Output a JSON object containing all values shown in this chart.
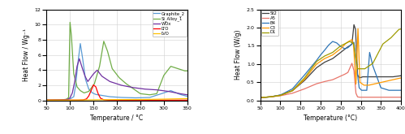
{
  "left_chart": {
    "xlabel": "Temperature / °C",
    "ylabel": "Heat Flow / Wg⁻¹",
    "xlim": [
      50,
      350
    ],
    "ylim": [
      0,
      12
    ],
    "yticks": [
      0,
      2,
      4,
      6,
      8,
      10,
      12
    ],
    "xticks": [
      50,
      100,
      150,
      200,
      250,
      300,
      350
    ],
    "series": {
      "Graphite_2": {
        "color": "#5B9BD5",
        "data_x": [
          50,
          85,
          95,
          100,
          108,
          112,
          117,
          122,
          127,
          133,
          140,
          148,
          155,
          165,
          185,
          210,
          240,
          270,
          295,
          315,
          335,
          350
        ],
        "data_y": [
          0.05,
          0.08,
          0.1,
          0.2,
          0.5,
          2.0,
          5.0,
          7.5,
          5.5,
          2.8,
          1.5,
          1.0,
          0.8,
          0.7,
          0.5,
          0.4,
          0.35,
          0.4,
          0.9,
          1.3,
          0.8,
          0.55
        ]
      },
      "Si_Alloy_1": {
        "color": "#70AD47",
        "data_x": [
          50,
          80,
          92,
          97,
          100,
          103,
          108,
          115,
          122,
          130,
          140,
          152,
          163,
          172,
          180,
          190,
          205,
          220,
          250,
          270,
          285,
          300,
          315,
          330,
          345,
          350
        ],
        "data_y": [
          0.05,
          0.08,
          0.15,
          0.4,
          10.3,
          8.5,
          3.5,
          1.8,
          1.3,
          1.0,
          1.2,
          2.2,
          4.5,
          7.8,
          6.5,
          4.2,
          3.0,
          2.2,
          0.9,
          0.75,
          0.9,
          3.3,
          4.5,
          4.2,
          3.9,
          3.9
        ]
      },
      "WOx": {
        "color": "#7030A0",
        "data_x": [
          50,
          80,
          95,
          100,
          105,
          110,
          115,
          120,
          126,
          132,
          138,
          144,
          150,
          158,
          168,
          185,
          210,
          235,
          260,
          285,
          310,
          335,
          350
        ],
        "data_y": [
          0.05,
          0.08,
          0.15,
          0.35,
          1.0,
          2.5,
          4.5,
          5.5,
          4.3,
          3.2,
          2.5,
          3.0,
          3.5,
          4.0,
          3.2,
          2.5,
          2.0,
          1.7,
          1.5,
          1.4,
          1.2,
          0.9,
          0.75
        ]
      },
      "LTO": {
        "color": "#FF0000",
        "data_x": [
          50,
          85,
          105,
          118,
          128,
          135,
          140,
          145,
          150,
          155,
          160,
          165,
          172,
          182,
          205,
          240,
          280,
          320,
          350
        ],
        "data_y": [
          0.05,
          0.05,
          0.05,
          0.05,
          0.08,
          0.2,
          0.6,
          1.3,
          2.05,
          1.8,
          0.9,
          0.3,
          0.1,
          0.05,
          0.05,
          0.05,
          0.05,
          0.05,
          0.05
        ]
      },
      "LVO": {
        "color": "#FFC000",
        "data_x": [
          50,
          100,
          150,
          200,
          250,
          300,
          350
        ],
        "data_y": [
          0.05,
          0.05,
          0.08,
          0.12,
          0.13,
          0.18,
          0.25
        ]
      }
    }
  },
  "right_chart": {
    "xlabel": "Temperature (°C)",
    "ylabel": "Heat Flow (W/g)",
    "xlim": [
      50,
      400
    ],
    "ylim": [
      0,
      2.5
    ],
    "yticks": [
      0.0,
      0.5,
      1.0,
      1.5,
      2.0,
      2.5
    ],
    "xticks": [
      50,
      100,
      150,
      200,
      250,
      300,
      350,
      400
    ],
    "series": {
      "St2": {
        "color": "#404040",
        "data_x": [
          50,
          75,
          100,
          130,
          160,
          190,
          210,
          230,
          250,
          265,
          272,
          278,
          283,
          287,
          292,
          297,
          305,
          320,
          340,
          360,
          380,
          400
        ],
        "data_y": [
          0.08,
          0.1,
          0.15,
          0.27,
          0.55,
          0.9,
          1.05,
          1.15,
          1.32,
          1.45,
          1.5,
          1.55,
          2.08,
          1.95,
          0.7,
          0.62,
          0.65,
          0.65,
          0.65,
          0.65,
          0.65,
          0.68
        ]
      },
      "A5": {
        "color": "#E8756A",
        "data_x": [
          50,
          75,
          100,
          130,
          160,
          190,
          210,
          230,
          250,
          260,
          268,
          278,
          283,
          288,
          292,
          297,
          310,
          340,
          370,
          400
        ],
        "data_y": [
          0.08,
          0.1,
          0.13,
          0.2,
          0.32,
          0.46,
          0.52,
          0.57,
          0.67,
          0.72,
          0.77,
          1.02,
          0.82,
          0.2,
          0.1,
          0.09,
          0.09,
          0.09,
          0.09,
          0.09
        ]
      },
      "B4": {
        "color": "#2F75B6",
        "data_x": [
          50,
          75,
          100,
          130,
          160,
          190,
          200,
          210,
          220,
          230,
          240,
          250,
          260,
          268,
          273,
          278,
          283,
          290,
          296,
          302,
          315,
          322,
          330,
          350,
          370,
          390,
          400
        ],
        "data_y": [
          0.08,
          0.1,
          0.15,
          0.32,
          0.7,
          1.1,
          1.25,
          1.38,
          1.52,
          1.62,
          1.58,
          1.48,
          1.42,
          1.45,
          1.5,
          1.55,
          1.6,
          0.9,
          0.35,
          0.28,
          0.28,
          1.32,
          0.95,
          0.35,
          0.28,
          0.28,
          0.28
        ]
      },
      "C3": {
        "color": "#FF9900",
        "data_x": [
          50,
          75,
          100,
          130,
          160,
          190,
          210,
          230,
          250,
          263,
          270,
          278,
          282,
          288,
          293,
          298,
          308,
          320,
          340,
          360,
          380,
          400
        ],
        "data_y": [
          0.08,
          0.1,
          0.14,
          0.27,
          0.58,
          1.0,
          1.15,
          1.25,
          1.42,
          1.57,
          1.62,
          1.67,
          1.52,
          0.45,
          1.97,
          0.5,
          0.42,
          0.42,
          0.47,
          0.52,
          0.57,
          0.62
        ]
      },
      "D1": {
        "color": "#9E9B00",
        "data_x": [
          50,
          75,
          100,
          130,
          160,
          190,
          210,
          230,
          250,
          263,
          272,
          282,
          292,
          310,
          330,
          355,
          375,
          395,
          400
        ],
        "data_y": [
          0.08,
          0.1,
          0.14,
          0.27,
          0.62,
          1.07,
          1.22,
          1.32,
          1.5,
          1.57,
          1.62,
          1.57,
          0.87,
          0.87,
          1.02,
          1.55,
          1.72,
          1.95,
          1.96
        ]
      }
    }
  }
}
